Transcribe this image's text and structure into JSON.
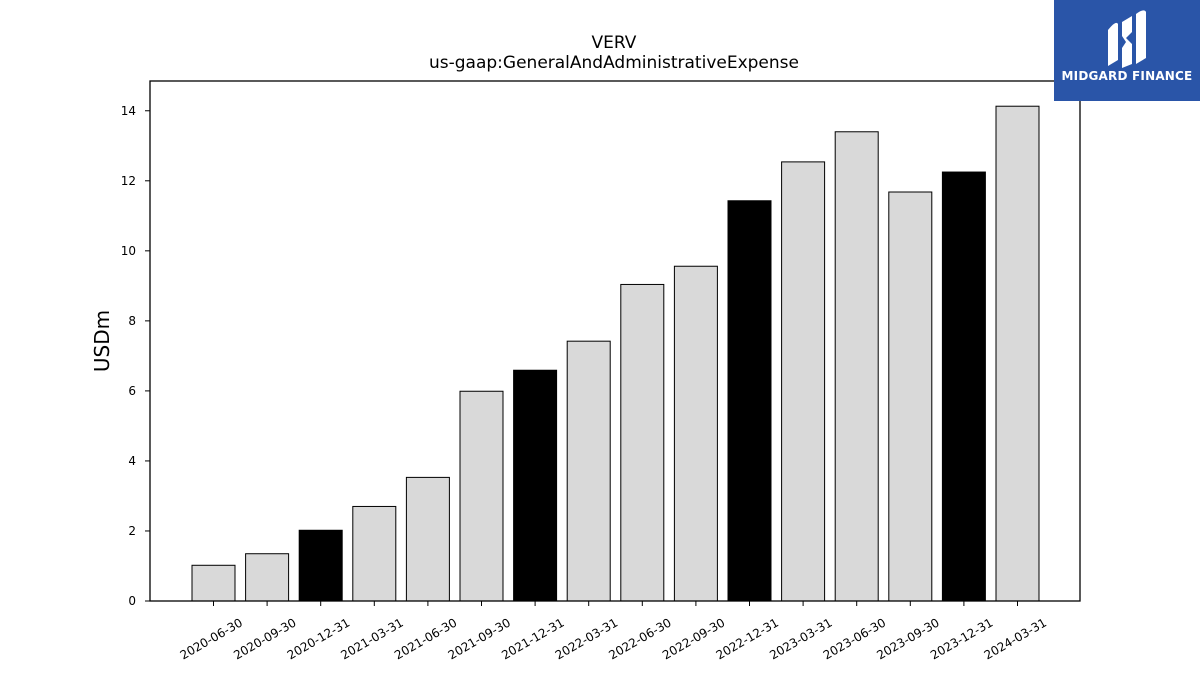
{
  "chart_data": {
    "type": "bar",
    "title": "VERV",
    "subtitle": "us-gaap:GeneralAndAdministrativeExpense",
    "xlabel": "",
    "ylabel": "USDm",
    "ylim": [
      0,
      14.85
    ],
    "yticks": [
      0,
      2,
      4,
      6,
      8,
      10,
      12,
      14
    ],
    "grid": false,
    "categories": [
      "2020-06-30",
      "2020-09-30",
      "2020-12-31",
      "2021-03-31",
      "2021-06-30",
      "2021-09-30",
      "2021-12-31",
      "2022-03-31",
      "2022-06-30",
      "2022-09-30",
      "2022-12-31",
      "2023-03-31",
      "2023-06-30",
      "2023-09-30",
      "2023-12-31",
      "2024-03-31"
    ],
    "values": [
      1.02,
      1.35,
      2.02,
      2.7,
      3.53,
      5.99,
      6.59,
      7.42,
      9.04,
      9.56,
      11.43,
      12.54,
      13.4,
      11.68,
      12.25,
      14.13
    ],
    "bar_colors": [
      "#d9d9d9",
      "#d9d9d9",
      "#000000",
      "#d9d9d9",
      "#d9d9d9",
      "#d9d9d9",
      "#000000",
      "#d9d9d9",
      "#d9d9d9",
      "#d9d9d9",
      "#000000",
      "#d9d9d9",
      "#d9d9d9",
      "#d9d9d9",
      "#000000",
      "#d9d9d9"
    ]
  },
  "logo": {
    "text": "MIDGARD FINANCE",
    "background": "#2a55a8"
  }
}
